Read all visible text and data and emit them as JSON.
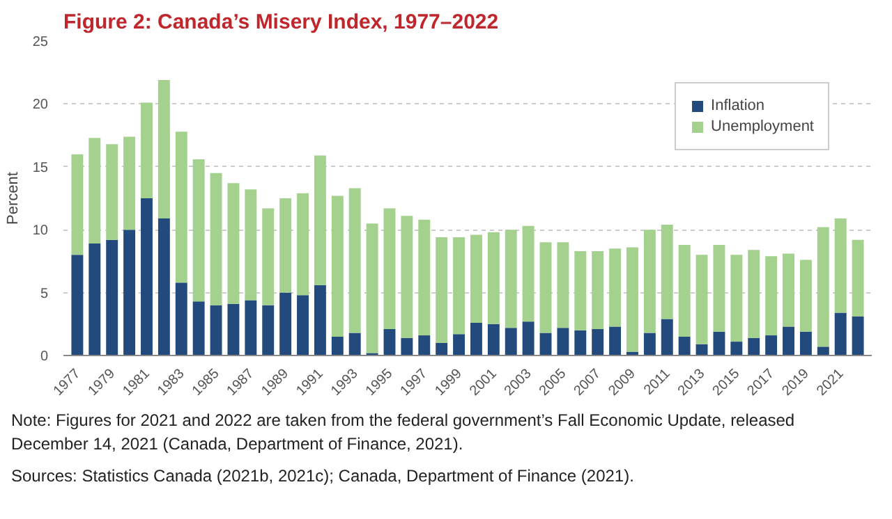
{
  "chart_data": {
    "type": "bar",
    "title": "Figure 2: Canada’s Misery Index, 1977–2022",
    "ylabel": "Percent",
    "stacked": true,
    "categories": [
      "1977",
      null,
      "1979",
      null,
      "1981",
      null,
      "1983",
      null,
      "1985",
      null,
      "1987",
      null,
      "1989",
      null,
      "1991",
      null,
      "1993",
      null,
      "1995",
      null,
      "1997",
      null,
      "1999",
      null,
      "2001",
      null,
      "2003",
      null,
      "2005",
      null,
      "2007",
      null,
      "2009",
      null,
      "2011",
      null,
      "2013",
      null,
      "2015",
      null,
      "2017",
      null,
      "2019",
      null,
      "2021",
      null
    ],
    "series": [
      {
        "name": "Inflation",
        "color": "#234a7c",
        "values": [
          8.0,
          8.9,
          9.2,
          10.0,
          12.5,
          10.9,
          5.8,
          4.3,
          4.0,
          4.1,
          4.4,
          4.0,
          5.0,
          4.8,
          5.6,
          1.5,
          1.8,
          0.2,
          2.1,
          1.4,
          1.6,
          1.0,
          1.7,
          2.6,
          2.5,
          2.2,
          2.7,
          1.8,
          2.2,
          2.0,
          2.1,
          2.3,
          0.3,
          1.8,
          2.9,
          1.5,
          0.9,
          1.9,
          1.1,
          1.4,
          1.6,
          2.3,
          1.9,
          0.7,
          3.4,
          3.1
        ]
      },
      {
        "name": "Unemployment",
        "color": "#a5d18f",
        "values": [
          8.0,
          8.4,
          7.6,
          7.4,
          7.6,
          11.0,
          12.0,
          11.3,
          10.5,
          9.6,
          8.8,
          7.7,
          7.5,
          8.1,
          10.3,
          11.2,
          11.5,
          10.3,
          9.6,
          9.7,
          9.2,
          8.4,
          7.7,
          7.0,
          7.3,
          7.8,
          7.6,
          7.2,
          6.8,
          6.3,
          6.2,
          6.2,
          8.3,
          8.2,
          7.5,
          7.3,
          7.1,
          6.9,
          6.9,
          7.0,
          6.3,
          5.8,
          5.7,
          9.5,
          7.5,
          6.1
        ]
      }
    ],
    "ylim": [
      0,
      25
    ],
    "yticks": [
      0,
      5,
      10,
      15,
      20,
      25
    ],
    "grid": "y",
    "legend": "top right",
    "annotations": [
      "Note: Figures for 2021 and 2022 are taken from the federal government’s Fall Economic Update, released December 14, 2021 (Canada, Department of Finance, 2021).",
      "Sources: Statistics Canada (2021b, 2021c); Canada, Department of Finance (2021)."
    ]
  }
}
